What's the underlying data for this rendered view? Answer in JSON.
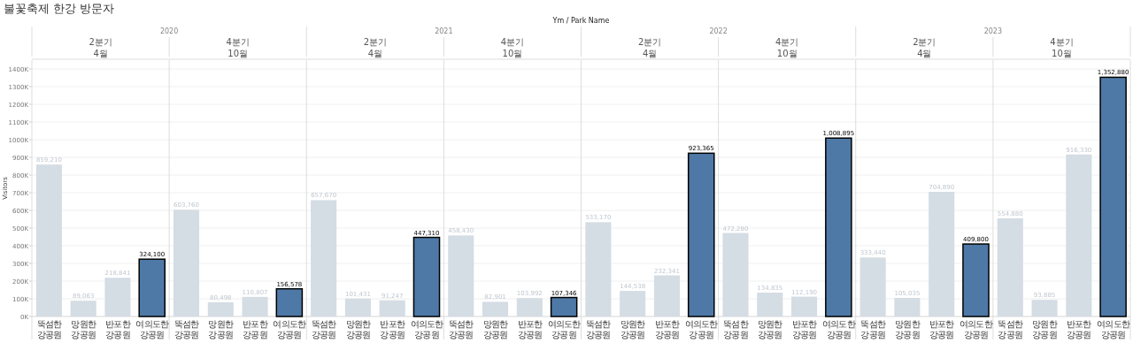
{
  "chart_data": {
    "type": "bar",
    "title": "불꽃축제 한강 방문자",
    "ylabel": "Visitors",
    "annotations": [
      "Ym / Park Name",
      "2020",
      "2분기",
      "4월",
      "4분기",
      "10월",
      "2021",
      "2분기",
      "4월",
      "4분기",
      "10월",
      "2022",
      "2분기",
      "4월",
      "4분기",
      "10월",
      "2023",
      "2분기",
      "4월",
      "4분기",
      "10월"
    ],
    "categories": [
      "뚝섬한강공원",
      "망원한강공원",
      "반포한강공원",
      "여의도한강공원",
      "뚝섬한강공원",
      "망원한강공원",
      "반포한강공원",
      "여의도한강공원",
      "뚝섬한강공원",
      "망원한강공원",
      "반포한강공원",
      "여의도한강공원",
      "뚝섬한강공원",
      "망원한강공원",
      "반포한강공원",
      "여의도한강공원",
      "뚝섬한강공원",
      "망원한강공원",
      "반포한강공원",
      "여의도한강공원",
      "뚝섬한강공원",
      "망원한강공원",
      "반포한강공원",
      "여의도한강공원",
      "뚝섬한강공원",
      "망원한강공원",
      "반포한강공원",
      "여의도한강공원",
      "뚝섬한강공원",
      "망원한강공원",
      "반포한강공원",
      "여의도한강공원"
    ],
    "values": [
      859210,
      89063,
      218841,
      324100,
      603760,
      80498,
      110807,
      156578,
      657670,
      101431,
      91247,
      447310,
      458430,
      82901,
      103992,
      107346,
      533170,
      144538,
      232341,
      923365,
      472280,
      134835,
      112190,
      1008895,
      333440,
      105035,
      704890,
      409800,
      554880,
      93885,
      916330,
      1352880
    ],
    "colors": [
      "#d4dce4",
      "#d4dce4",
      "#d4dce4",
      "#4e79a7",
      "#d4dce4",
      "#d4dce4",
      "#d4dce4",
      "#4e79a7",
      "#d4dce4",
      "#d4dce4",
      "#d4dce4",
      "#4e79a7",
      "#d4dce4",
      "#d4dce4",
      "#d4dce4",
      "#4e79a7",
      "#d4dce4",
      "#d4dce4",
      "#d4dce4",
      "#4e79a7",
      "#d4dce4",
      "#d4dce4",
      "#d4dce4",
      "#4e79a7",
      "#d4dce4",
      "#d4dce4",
      "#d4dce4",
      "#4e79a7",
      "#d4dce4",
      "#d4dce4",
      "#d4dce4",
      "#4e79a7"
    ],
    "ylim": [
      0,
      1450000
    ],
    "yticks": [
      {
        "value": 0,
        "label": "0K"
      },
      {
        "value": 100000,
        "label": "100K"
      },
      {
        "value": 200000,
        "label": "200K"
      },
      {
        "value": 300000,
        "label": "300K"
      },
      {
        "value": 400000,
        "label": "400K"
      },
      {
        "value": 500000,
        "label": "500K"
      },
      {
        "value": 600000,
        "label": "600K"
      },
      {
        "value": 700000,
        "label": "700K"
      },
      {
        "value": 800000,
        "label": "800K"
      },
      {
        "value": 900000,
        "label": "900K"
      },
      {
        "value": 1000000,
        "label": "1000K"
      },
      {
        "value": 1100000,
        "label": "1100K"
      },
      {
        "value": 1200000,
        "label": "1200K"
      },
      {
        "value": 1300000,
        "label": "1300K"
      },
      {
        "value": 1400000,
        "label": "1400K"
      }
    ],
    "value_labels": [
      "859,210",
      "89,063",
      "218,841",
      "324,100",
      "603,760",
      "80,498",
      "110,807",
      "156,578",
      "657,670",
      "101,431",
      "91,247",
      "447,310",
      "458,430",
      "82,901",
      "103,992",
      "107,346",
      "533,170",
      "144,538",
      "232,341",
      "923,365",
      "472,280",
      "134,835",
      "112,190",
      "1,008,895",
      "333,440",
      "105,035",
      "704,890",
      "409,800",
      "554,880",
      "93,885",
      "916,330",
      "1,352,880"
    ],
    "grid": "y"
  }
}
